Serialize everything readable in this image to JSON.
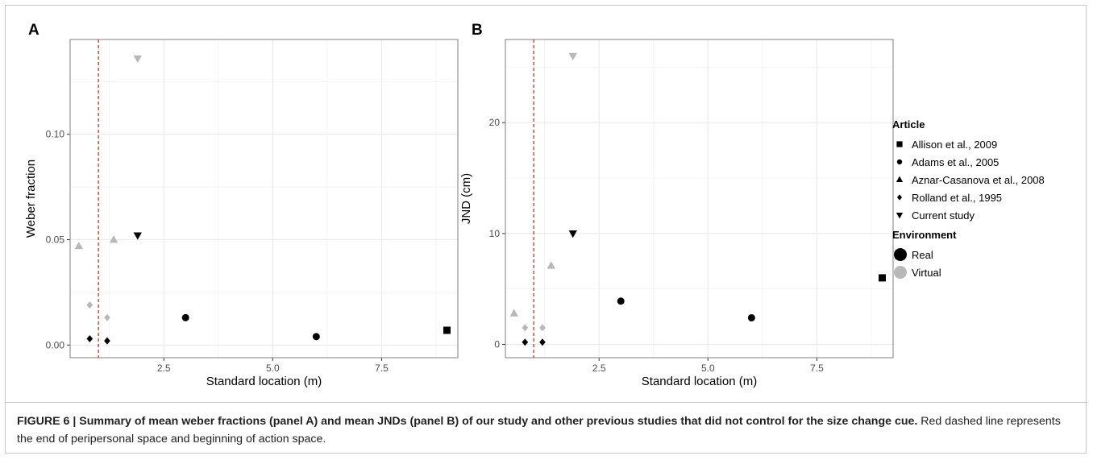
{
  "chart_data": [
    {
      "type": "scatter",
      "panel": "A",
      "xlabel": "Standard location (m)",
      "ylabel": "Weber fraction",
      "xlim": [
        0.35,
        9.25
      ],
      "ylim": [
        -0.006,
        0.145
      ],
      "xticks": [
        2.5,
        5.0,
        7.5
      ],
      "xtick_labels": [
        "2.5",
        "5.0",
        "7.5"
      ],
      "yticks": [
        0.0,
        0.05,
        0.1
      ],
      "ytick_labels": [
        "0.00",
        "0.05",
        "0.10"
      ],
      "reference_line": {
        "x": 1.0,
        "color": "#e03c31",
        "style": "dashed"
      },
      "grid": true,
      "points": [
        {
          "article": "Allison et al., 2009",
          "environment": "Real",
          "x": 9.0,
          "y": 0.007
        },
        {
          "article": "Adams et al., 2005",
          "environment": "Real",
          "x": 3.0,
          "y": 0.013
        },
        {
          "article": "Adams et al., 2005",
          "environment": "Real",
          "x": 6.0,
          "y": 0.004
        },
        {
          "article": "Aznar-Casanova et al., 2008",
          "environment": "Virtual",
          "x": 0.55,
          "y": 0.047
        },
        {
          "article": "Aznar-Casanova et al., 2008",
          "environment": "Virtual",
          "x": 1.35,
          "y": 0.05
        },
        {
          "article": "Rolland et al., 1995",
          "environment": "Real",
          "x": 0.8,
          "y": 0.003
        },
        {
          "article": "Rolland et al., 1995",
          "environment": "Real",
          "x": 1.2,
          "y": 0.002
        },
        {
          "article": "Rolland et al., 1995",
          "environment": "Virtual",
          "x": 0.8,
          "y": 0.019
        },
        {
          "article": "Rolland et al., 1995",
          "environment": "Virtual",
          "x": 1.2,
          "y": 0.013
        },
        {
          "article": "Current study",
          "environment": "Real",
          "x": 1.9,
          "y": 0.052
        },
        {
          "article": "Current study",
          "environment": "Virtual",
          "x": 1.9,
          "y": 0.136
        }
      ]
    },
    {
      "type": "scatter",
      "panel": "B",
      "xlabel": "Standard location (m)",
      "ylabel": "JND (cm)",
      "xlim": [
        0.35,
        9.25
      ],
      "ylim": [
        -1.2,
        27.5
      ],
      "xticks": [
        2.5,
        5.0,
        7.5
      ],
      "xtick_labels": [
        "2.5",
        "5.0",
        "7.5"
      ],
      "yticks": [
        0,
        10,
        20
      ],
      "ytick_labels": [
        "0",
        "10",
        "20"
      ],
      "reference_line": {
        "x": 1.0,
        "color": "#e03c31",
        "style": "dashed"
      },
      "grid": true,
      "points": [
        {
          "article": "Allison et al., 2009",
          "environment": "Real",
          "x": 9.0,
          "y": 6.0
        },
        {
          "article": "Adams et al., 2005",
          "environment": "Real",
          "x": 3.0,
          "y": 3.9
        },
        {
          "article": "Adams et al., 2005",
          "environment": "Real",
          "x": 6.0,
          "y": 2.4
        },
        {
          "article": "Aznar-Casanova et al., 2008",
          "environment": "Virtual",
          "x": 0.55,
          "y": 2.8
        },
        {
          "article": "Aznar-Casanova et al., 2008",
          "environment": "Virtual",
          "x": 1.4,
          "y": 7.1
        },
        {
          "article": "Rolland et al., 1995",
          "environment": "Real",
          "x": 0.8,
          "y": 0.2
        },
        {
          "article": "Rolland et al., 1995",
          "environment": "Real",
          "x": 1.2,
          "y": 0.2
        },
        {
          "article": "Rolland et al., 1995",
          "environment": "Virtual",
          "x": 0.8,
          "y": 1.5
        },
        {
          "article": "Rolland et al., 1995",
          "environment": "Virtual",
          "x": 1.2,
          "y": 1.5
        },
        {
          "article": "Current study",
          "environment": "Real",
          "x": 1.9,
          "y": 10.0
        },
        {
          "article": "Current study",
          "environment": "Virtual",
          "x": 1.9,
          "y": 26.0
        }
      ]
    }
  ],
  "panels": {
    "a_letter": "A",
    "b_letter": "B"
  },
  "legend": {
    "article_title": "Article",
    "articles": [
      {
        "label": "Allison et al., 2009",
        "shape": "square"
      },
      {
        "label": "Adams et al., 2005",
        "shape": "circle"
      },
      {
        "label": "Aznar-Casanova et al., 2008",
        "shape": "triangle-up"
      },
      {
        "label": "Rolland et al., 1995",
        "shape": "diamond"
      },
      {
        "label": "Current study",
        "shape": "triangle-down"
      }
    ],
    "environment_title": "Environment",
    "environments": [
      {
        "label": "Real",
        "color": "#000000"
      },
      {
        "label": "Virtual",
        "color": "#b8b8b8"
      }
    ]
  },
  "caption": {
    "bold": "FIGURE 6 | Summary of mean weber fractions (panel A) and mean JNDs (panel B) of our study and other previous studies that did not control for the size change cue.",
    "normal": " Red dashed line represents the end of peripersonal space and beginning of action space."
  },
  "colors": {
    "real": "#000000",
    "virtual": "#b8b8b8",
    "reference": "#e03c31",
    "grid": "#ebebeb",
    "axis": "#333333"
  }
}
